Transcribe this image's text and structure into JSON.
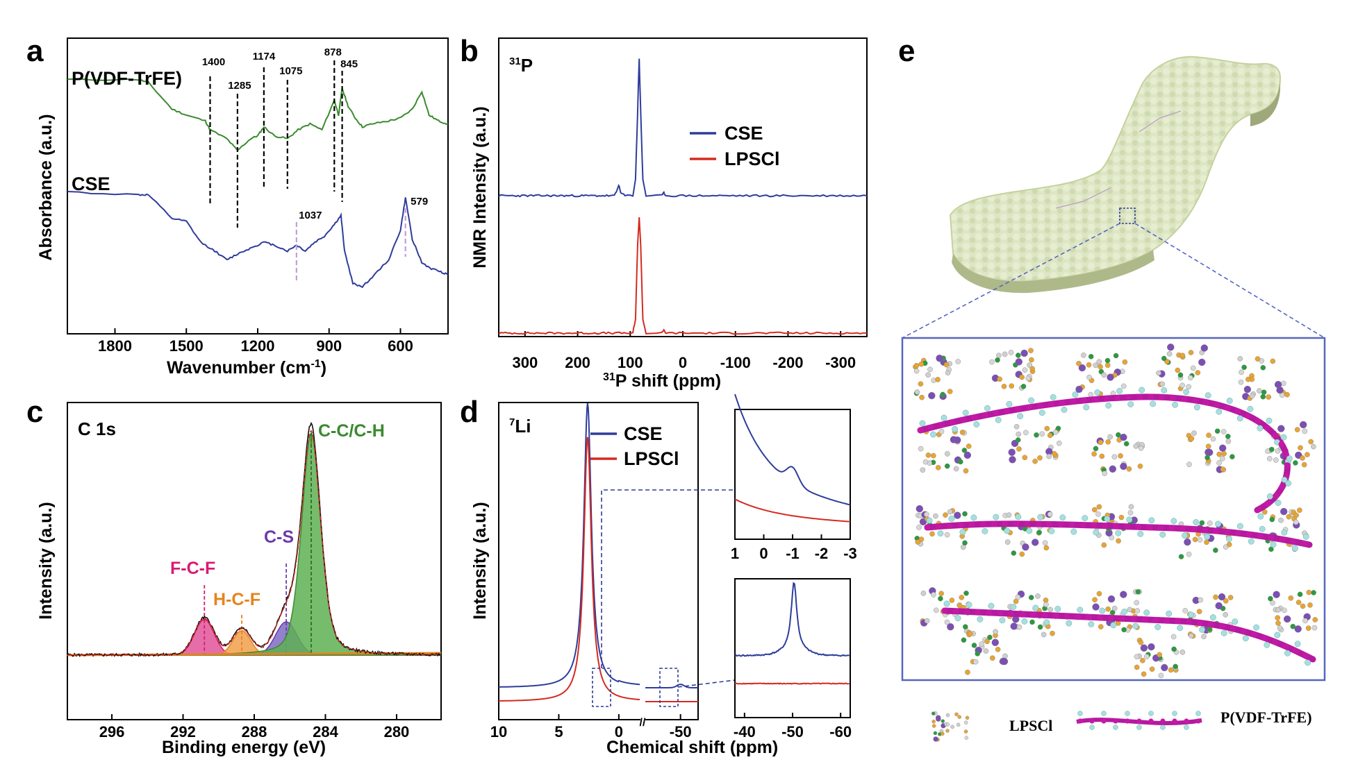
{
  "panels": [
    {
      "id": "a",
      "letter": "a",
      "xlabel": "Wavenumber (cm",
      "xlabel_sup": "-1",
      "xlabel_tail": ")",
      "ylabel": "Absorbance (a.u.)",
      "series_labels": [
        "P(VDF-TrFE)",
        "CSE"
      ],
      "peak_labels_green": [
        "1400",
        "1285",
        "1174",
        "1075",
        "878",
        "845"
      ],
      "peak_labels_blue": [
        "1037",
        "579"
      ]
    },
    {
      "id": "b",
      "letter": "b",
      "nucleus_sup": "31",
      "nucleus": "P",
      "xlabel_sup": "31",
      "xlabel": "P shift (ppm)",
      "ylabel": "NMR  Intensity (a.u.)",
      "legend": [
        "CSE",
        "LPSCl"
      ]
    },
    {
      "id": "c",
      "letter": "c",
      "title": "C 1s",
      "xlabel": "Binding energy (eV)",
      "ylabel": "Intensity (a.u.)",
      "peak_labels": [
        "F-C-F",
        "H-C-F",
        "C-S",
        "C-C/C-H"
      ]
    },
    {
      "id": "d",
      "letter": "d",
      "nucleus_sup": "7",
      "nucleus": "Li",
      "xlabel": "Chemical shift (ppm)",
      "ylabel": "Intensity (a.u.)",
      "legend": [
        "CSE",
        "LPSCl"
      ]
    },
    {
      "id": "e",
      "letter": "e",
      "legend": [
        "LPSCl",
        "P(VDF-TrFE)"
      ]
    }
  ],
  "colors": {
    "green": "#3a8a2e",
    "blue": "#2e3c9b",
    "red": "#d42a1f",
    "violet": "#c39be0",
    "pink": "#d81b72",
    "orange": "#e6831f",
    "purple": "#6a3ba8",
    "box": "#5566c0",
    "polymer": "#b5199e"
  },
  "chart_data": [
    {
      "panel": "a",
      "type": "line",
      "x_range": [
        2000,
        400
      ],
      "x_ticks": [
        1800,
        1500,
        1200,
        900,
        600
      ],
      "series": [
        {
          "name": "P(VDF-TrFE)",
          "x": [
            2000,
            1700,
            1660,
            1560,
            1500,
            1420,
            1400,
            1330,
            1285,
            1230,
            1200,
            1174,
            1130,
            1075,
            1030,
            980,
            930,
            878,
            860,
            845,
            820,
            790,
            760,
            720,
            650,
            600,
            550,
            510,
            480,
            440,
            400
          ],
          "y": [
            0.86,
            0.86,
            0.85,
            0.76,
            0.74,
            0.72,
            0.69,
            0.66,
            0.62,
            0.66,
            0.67,
            0.7,
            0.67,
            0.66,
            0.69,
            0.71,
            0.69,
            0.79,
            0.74,
            0.83,
            0.77,
            0.73,
            0.7,
            0.71,
            0.72,
            0.73,
            0.76,
            0.82,
            0.74,
            0.72,
            0.71
          ]
        },
        {
          "name": "CSE",
          "x": [
            2000,
            1700,
            1660,
            1560,
            1500,
            1440,
            1380,
            1330,
            1285,
            1230,
            1174,
            1130,
            1075,
            1037,
            1000,
            960,
            920,
            878,
            850,
            835,
            800,
            760,
            720,
            650,
            600,
            579,
            550,
            510,
            470,
            430,
            400
          ],
          "y": [
            0.48,
            0.47,
            0.47,
            0.39,
            0.38,
            0.31,
            0.28,
            0.25,
            0.27,
            0.29,
            0.31,
            0.3,
            0.28,
            0.3,
            0.28,
            0.31,
            0.33,
            0.37,
            0.4,
            0.28,
            0.17,
            0.16,
            0.19,
            0.25,
            0.35,
            0.46,
            0.32,
            0.24,
            0.22,
            0.21,
            0.2
          ]
        }
      ]
    },
    {
      "panel": "b",
      "type": "line",
      "x_range": [
        350,
        -350
      ],
      "x_ticks": [
        300,
        200,
        100,
        0,
        -100,
        -200,
        -300
      ],
      "series": [
        {
          "name": "CSE",
          "x": [
            350,
            130,
            125,
            122,
            118,
            110,
            95,
            90,
            86,
            83,
            80,
            76,
            70,
            40,
            36,
            32,
            -350
          ],
          "y": [
            0.5,
            0.5,
            0.52,
            0.54,
            0.51,
            0.5,
            0.5,
            0.56,
            0.8,
            1.0,
            0.8,
            0.56,
            0.5,
            0.5,
            0.51,
            0.5,
            0.5
          ]
        },
        {
          "name": "LPSCl",
          "x": [
            350,
            95,
            90,
            86,
            83,
            80,
            76,
            70,
            40,
            36,
            32,
            -350
          ],
          "y": [
            0.0,
            0.0,
            0.05,
            0.32,
            0.42,
            0.32,
            0.05,
            0.0,
            0.0,
            0.01,
            0.0,
            0.0
          ]
        }
      ]
    },
    {
      "panel": "c",
      "type": "area",
      "x_range": [
        298.5,
        277.5
      ],
      "x_ticks": [
        296,
        292,
        288,
        284,
        280
      ],
      "series": [
        {
          "name": "F-C-F",
          "center": 290.8,
          "height": 0.16,
          "width": 0.55
        },
        {
          "name": "H-C-F",
          "center": 288.7,
          "height": 0.11,
          "width": 0.5
        },
        {
          "name": "C-S",
          "center": 286.2,
          "height": 0.15,
          "width": 0.6
        },
        {
          "name": "C-C/C-H",
          "center": 284.8,
          "height": 1.0,
          "width": 0.55
        }
      ]
    },
    {
      "panel": "d",
      "type": "line",
      "x_range": [
        10,
        -55
      ],
      "x_ticks": [
        10,
        5,
        0,
        -50
      ],
      "series": [
        {
          "name": "CSE",
          "center": 2.6,
          "height": 1.0,
          "offset": 0.04
        },
        {
          "name": "LPSCl",
          "center": 2.6,
          "height": 0.93,
          "offset": 0.0
        }
      ],
      "insets": [
        {
          "x_range": [
            1,
            -3
          ],
          "x_ticks": [
            1,
            0,
            -1,
            -2,
            -3
          ]
        },
        {
          "x_range": [
            -38,
            -62
          ],
          "x_ticks": [
            -40,
            -50,
            -60
          ]
        }
      ]
    }
  ]
}
